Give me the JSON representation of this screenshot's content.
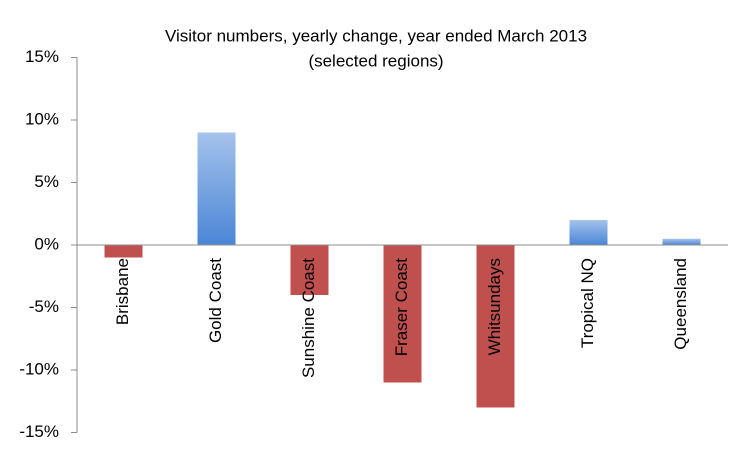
{
  "chart_data": {
    "type": "bar",
    "title": "Visitor numbers, yearly change, year ended March 2013",
    "subtitle": "(selected regions)",
    "categories": [
      "Brisbane",
      "Gold Coast",
      "Sunshine Coast",
      "Fraser Coast",
      "Whitsundays",
      "Tropical NQ",
      "Queensland"
    ],
    "values": [
      -1,
      9,
      -4,
      -11,
      -13,
      2,
      0.5
    ],
    "positive_color": "#4a86d6",
    "negative_color": "#c0504d",
    "ylim": [
      -15,
      15
    ],
    "yticks": [
      {
        "value": -15,
        "label": "-15%"
      },
      {
        "value": -10,
        "label": "-10%"
      },
      {
        "value": -5,
        "label": "-5%"
      },
      {
        "value": 0,
        "label": "0%"
      },
      {
        "value": 5,
        "label": "5%"
      },
      {
        "value": 10,
        "label": "10%"
      },
      {
        "value": 15,
        "label": "15%"
      }
    ],
    "grid": false
  }
}
